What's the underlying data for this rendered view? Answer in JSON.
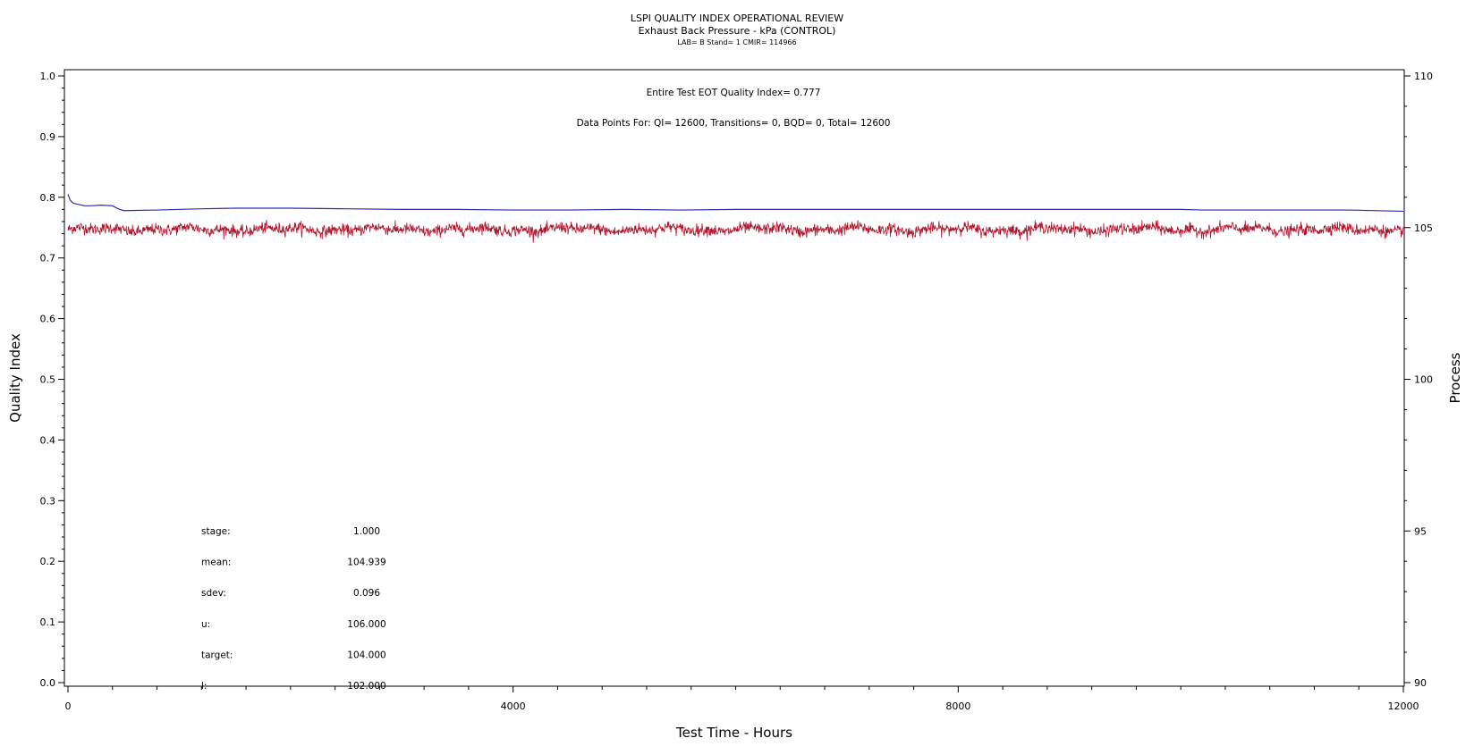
{
  "chart_data": {
    "type": "line",
    "title": "LSPI QUALITY INDEX OPERATIONAL REVIEW",
    "subtitle": "Exhaust Back Pressure - kPa (CONTROL)",
    "subtitle2": "LAB= B Stand= 1 CMIR= 114966",
    "xlabel": "Test Time - Hours",
    "ylabel_left": "Quality Index",
    "ylabel_right": "Process",
    "xlim": [
      0,
      12000
    ],
    "ylim_left": [
      0.0,
      1.0
    ],
    "ylim_right": [
      90,
      110
    ],
    "x_ticks": [
      "0",
      "4000",
      "8000",
      "12000"
    ],
    "y_left_ticks": [
      "0.0",
      "0.1",
      "0.2",
      "0.3",
      "0.4",
      "0.5",
      "0.6",
      "0.7",
      "0.8",
      "0.9",
      "1.0"
    ],
    "y_right_ticks": [
      "90",
      "95",
      "100",
      "105",
      "110"
    ],
    "annotations": {
      "quality_index": "Entire Test EOT Quality Index=   0.777",
      "data_points": "Data Points For: QI= 12600, Transitions=     0, BQD=     0, Total= 12600"
    },
    "stats": [
      {
        "label": "stage:",
        "value": "1.000"
      },
      {
        "label": "mean:",
        "value": "104.939"
      },
      {
        "label": "sdev:",
        "value": "0.096"
      },
      {
        "label": "u:",
        "value": "106.000"
      },
      {
        "label": "target:",
        "value": "104.000"
      },
      {
        "label": "l:",
        "value": "102.000"
      }
    ],
    "series": [
      {
        "axis": "left",
        "color": "#2b2bb0",
        "x": [
          0,
          20,
          50,
          100,
          150,
          200,
          300,
          400,
          450,
          500,
          800,
          1200,
          1500,
          2000,
          2500,
          3000,
          3500,
          4000,
          4500,
          5000,
          5500,
          6000,
          7000,
          8000,
          9000,
          10000,
          10200,
          11000,
          11500,
          12000
        ],
        "values": [
          0.805,
          0.795,
          0.79,
          0.788,
          0.786,
          0.786,
          0.787,
          0.786,
          0.781,
          0.778,
          0.779,
          0.781,
          0.782,
          0.782,
          0.781,
          0.78,
          0.78,
          0.779,
          0.779,
          0.78,
          0.779,
          0.78,
          0.78,
          0.78,
          0.78,
          0.78,
          0.779,
          0.779,
          0.779,
          0.777
        ]
      },
      {
        "axis": "right",
        "color": "#b0142c",
        "mean": 104.939,
        "sdev": 0.096,
        "points": 12600,
        "x_range": [
          0,
          12000
        ]
      }
    ]
  }
}
